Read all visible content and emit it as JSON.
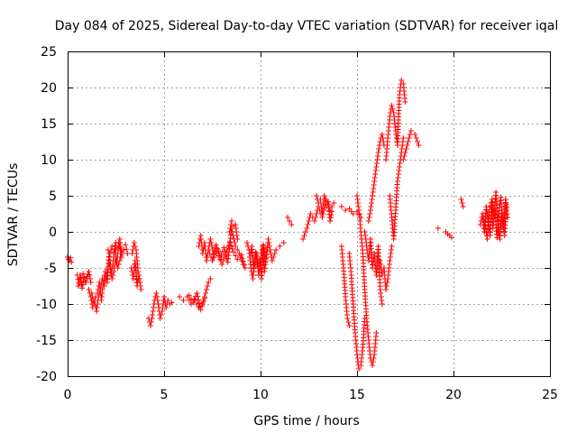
{
  "chart_data": {
    "type": "scatter",
    "title": "Day 084 of 2025, Sidereal Day-to-day VTEC variation (SDTVAR) for receiver iqal",
    "xlabel": "GPS time / hours",
    "ylabel": "SDTVAR / TECUs",
    "xlim": [
      0,
      25
    ],
    "ylim": [
      -20,
      25
    ],
    "xticks": [
      0,
      5,
      10,
      15,
      20,
      25
    ],
    "yticks": [
      -20,
      -15,
      -10,
      -5,
      0,
      5,
      10,
      15,
      20,
      25
    ],
    "xtick_labels": [
      "0",
      "5",
      "10",
      "15",
      "20",
      "25"
    ],
    "ytick_labels": [
      "-20",
      "-15",
      "-10",
      "-5",
      "0",
      "5",
      "10",
      "15",
      "20",
      "25"
    ],
    "grid": true,
    "marker": "+",
    "color": "#ff0000",
    "series": [
      {
        "name": "SDTVAR",
        "segments": [
          {
            "x": [
              0.0,
              0.05,
              0.1,
              0.15,
              0.2
            ],
            "y": [
              -3.5,
              -3.8,
              -4.0,
              -3.6,
              -4.2
            ]
          },
          {
            "x": [
              0.5,
              0.6,
              0.7,
              0.8,
              0.9,
              1.0,
              1.1,
              1.2
            ],
            "y": [
              -6.0,
              -7.2,
              -6.5,
              -5.8,
              -6.8,
              -6.2,
              -5.5,
              -7.0
            ]
          },
          {
            "x": [
              0.55,
              0.65,
              0.75,
              0.85,
              0.95,
              1.05
            ],
            "y": [
              -7.5,
              -6.0,
              -7.8,
              -6.3,
              -7.0,
              -5.9
            ]
          },
          {
            "x": [
              1.1,
              1.2,
              1.3,
              1.4,
              1.5,
              1.6,
              1.7,
              1.8,
              1.9,
              2.0,
              2.1,
              2.2,
              2.3,
              2.4,
              2.5,
              2.6,
              2.7,
              2.8
            ],
            "y": [
              -8.0,
              -9.0,
              -10.5,
              -9.5,
              -11.0,
              -9.0,
              -8.0,
              -6.5,
              -7.5,
              -6.0,
              -5.0,
              -4.0,
              -6.5,
              -5.5,
              -3.5,
              -5.0,
              -4.0,
              -2.5
            ]
          },
          {
            "x": [
              1.25,
              1.35,
              1.45,
              1.55,
              1.65,
              1.75,
              1.85,
              1.95,
              2.05,
              2.15,
              2.25,
              2.35,
              2.45,
              2.55,
              2.65,
              2.75
            ],
            "y": [
              -8.5,
              -10.0,
              -9.0,
              -8.5,
              -7.0,
              -9.5,
              -7.0,
              -5.5,
              -7.0,
              -3.0,
              -6.0,
              -4.5,
              -2.0,
              -4.5,
              -1.5,
              -3.0
            ]
          },
          {
            "x": [
              2.1,
              2.2,
              2.3,
              2.4,
              2.5,
              2.6,
              2.7,
              2.8,
              2.9,
              3.0,
              3.1
            ],
            "y": [
              -2.5,
              -3.0,
              -2.0,
              -2.8,
              -1.5,
              -2.2,
              -1.0,
              -3.5,
              -2.5,
              -1.8,
              -3.0
            ]
          },
          {
            "x": [
              3.3,
              3.4,
              3.5,
              3.6,
              3.7,
              3.8
            ],
            "y": [
              -5.0,
              -6.5,
              -4.0,
              -7.5,
              -6.0,
              -8.0
            ]
          },
          {
            "x": [
              3.35,
              3.45,
              3.55,
              3.65
            ],
            "y": [
              -3.0,
              -1.5,
              -2.5,
              -5.5
            ]
          },
          {
            "x": [
              4.2,
              4.3,
              4.4,
              4.5,
              4.6,
              4.7,
              4.8,
              4.9,
              5.0,
              5.1,
              5.2,
              5.3,
              5.4
            ],
            "y": [
              -12.0,
              -13.0,
              -11.5,
              -9.5,
              -8.5,
              -10.0,
              -12.0,
              -11.0,
              -9.0,
              -10.5,
              -9.5,
              -10.0,
              -9.8
            ]
          },
          {
            "x": [
              5.8,
              6.0,
              6.2,
              6.4,
              6.6,
              6.8,
              7.0,
              7.1,
              7.2,
              7.3,
              7.4
            ],
            "y": [
              -9.0,
              -9.5,
              -9.0,
              -10.0,
              -9.5,
              -10.5,
              -10.0,
              -9.0,
              -8.0,
              -7.0,
              -6.5
            ]
          },
          {
            "x": [
              6.3,
              6.5,
              6.7,
              6.9,
              7.1
            ],
            "y": [
              -8.8,
              -9.8,
              -8.5,
              -10.8,
              -9.2
            ]
          },
          {
            "x": [
              6.8,
              6.9,
              7.0,
              7.1,
              7.2
            ],
            "y": [
              -2.0,
              -0.5,
              -3.0,
              -1.5,
              -4.0
            ]
          },
          {
            "x": [
              7.2,
              7.4,
              7.6,
              7.8,
              8.0,
              8.2,
              8.4,
              8.6,
              8.8,
              9.0,
              9.2
            ],
            "y": [
              -4.0,
              -1.0,
              -3.5,
              -2.5,
              -4.5,
              -3.0,
              -1.5,
              -2.8,
              -3.8,
              -3.2,
              -5.0
            ]
          },
          {
            "x": [
              7.3,
              7.5,
              7.7,
              7.9,
              8.1,
              8.3,
              8.5,
              8.7,
              8.9,
              9.1
            ],
            "y": [
              -2.5,
              -4.0,
              -1.8,
              -3.8,
              -2.2,
              -4.2,
              0.5,
              -2.0,
              -3.0,
              -4.5
            ]
          },
          {
            "x": [
              8.4,
              8.5,
              8.6,
              8.7,
              8.8
            ],
            "y": [
              0.0,
              1.5,
              0.8,
              1.0,
              -1.0
            ]
          },
          {
            "x": [
              9.3,
              9.4,
              9.5,
              9.6,
              9.7,
              9.8,
              9.9,
              10.0,
              10.1,
              10.2,
              10.3,
              10.4,
              10.6,
              10.8,
              11.0,
              11.2
            ],
            "y": [
              -1.5,
              -2.5,
              -5.0,
              -6.5,
              -4.0,
              -3.0,
              -6.0,
              -4.5,
              -2.0,
              -5.5,
              -3.5,
              -1.0,
              -4.0,
              -2.5,
              -2.0,
              -1.5
            ]
          },
          {
            "x": [
              9.45,
              9.55,
              9.65,
              9.75,
              9.85,
              9.95,
              10.05,
              10.15,
              10.25,
              10.35
            ],
            "y": [
              -3.5,
              -2.0,
              -5.5,
              -2.8,
              -4.8,
              -3.8,
              -6.5,
              -1.8,
              -4.2,
              -2.2
            ]
          },
          {
            "x": [
              11.4,
              11.6
            ],
            "y": [
              2.0,
              1.0
            ]
          },
          {
            "x": [
              12.2,
              12.4,
              12.6,
              12.8,
              13.0,
              13.2,
              13.4,
              13.6,
              13.8
            ],
            "y": [
              -1.0,
              0.5,
              2.5,
              1.5,
              3.5,
              2.0,
              4.5,
              3.0,
              4.0
            ]
          },
          {
            "x": [
              12.9,
              13.0,
              13.1,
              13.2,
              13.3,
              13.4,
              13.5,
              13.6,
              13.7
            ],
            "y": [
              5.0,
              4.0,
              4.5,
              2.5,
              5.0,
              3.5,
              4.2,
              1.5,
              2.8
            ]
          },
          {
            "x": [
              14.2,
              14.4,
              14.6,
              14.8,
              15.0,
              15.2
            ],
            "y": [
              3.5,
              3.0,
              3.2,
              2.5,
              2.8,
              2.0
            ]
          },
          {
            "x": [
              14.2,
              14.3,
              14.4,
              14.5,
              14.6
            ],
            "y": [
              -2.0,
              -5.0,
              -9.0,
              -12.0,
              -13.0
            ]
          },
          {
            "x": [
              14.6,
              14.7,
              14.8,
              14.9,
              15.0,
              15.1,
              15.2,
              15.3,
              15.4
            ],
            "y": [
              -3.0,
              -6.0,
              -10.0,
              -14.0,
              -17.0,
              -19.0,
              -18.5,
              -16.0,
              -12.0
            ]
          },
          {
            "x": [
              15.0,
              15.1,
              15.2,
              15.3,
              15.4,
              15.5,
              15.6,
              15.7,
              15.8,
              15.9,
              16.0
            ],
            "y": [
              5.0,
              3.0,
              0.0,
              -3.0,
              -8.0,
              -12.0,
              -15.0,
              -17.5,
              -18.5,
              -17.0,
              -14.0
            ]
          },
          {
            "x": [
              15.4,
              15.5,
              15.6,
              15.7,
              15.8,
              15.9,
              16.0,
              16.1,
              16.2,
              16.3
            ],
            "y": [
              0.0,
              -2.0,
              -4.0,
              -1.0,
              -5.0,
              -3.0,
              -6.0,
              -2.0,
              -8.0,
              -10.0
            ]
          },
          {
            "x": [
              15.6,
              15.7,
              15.8,
              15.9,
              16.0,
              16.1,
              16.2,
              16.3,
              16.4
            ],
            "y": [
              1.5,
              3.0,
              5.0,
              7.0,
              9.0,
              11.0,
              12.5,
              13.5,
              12.0
            ]
          },
          {
            "x": [
              16.2,
              16.3,
              16.4,
              16.5,
              16.6,
              16.7,
              16.8
            ],
            "y": [
              -4.0,
              -6.0,
              -5.0,
              -8.0,
              -6.5,
              -4.0,
              -2.0
            ]
          },
          {
            "x": [
              16.5,
              16.6,
              16.7,
              16.8,
              16.9,
              17.0,
              17.1,
              17.2,
              17.3,
              17.4,
              17.5
            ],
            "y": [
              10.0,
              13.0,
              16.0,
              17.5,
              16.5,
              14.0,
              12.0,
              19.0,
              21.0,
              20.5,
              18.0
            ]
          },
          {
            "x": [
              16.7,
              16.8,
              16.9,
              17.0,
              17.1,
              17.2,
              17.3,
              17.4
            ],
            "y": [
              5.0,
              2.0,
              -1.0,
              3.0,
              7.0,
              9.0,
              11.0,
              13.0
            ]
          },
          {
            "x": [
              17.4,
              17.6,
              17.8,
              18.0,
              18.2
            ],
            "y": [
              10.0,
              12.0,
              14.0,
              13.5,
              12.0
            ]
          },
          {
            "x": [
              19.2
            ],
            "y": [
              0.5
            ]
          },
          {
            "x": [
              19.6,
              19.7,
              19.8,
              19.9
            ],
            "y": [
              0.0,
              -0.3,
              -0.5,
              -0.8
            ]
          },
          {
            "x": [
              20.4,
              20.5
            ],
            "y": [
              4.5,
              3.5
            ]
          },
          {
            "x": [
              21.4,
              21.5,
              21.6,
              21.7,
              21.8,
              21.9,
              22.0,
              22.1,
              22.2,
              22.3,
              22.4,
              22.5,
              22.6,
              22.7,
              22.8
            ],
            "y": [
              1.0,
              2.5,
              0.0,
              3.5,
              1.5,
              -0.5,
              4.5,
              2.0,
              5.5,
              1.0,
              -1.0,
              3.0,
              0.5,
              4.5,
              2.0
            ]
          },
          {
            "x": [
              21.55,
              21.65,
              21.75,
              21.85,
              21.95,
              22.05,
              22.15,
              22.25,
              22.35,
              22.45,
              22.55,
              22.65,
              22.75
            ],
            "y": [
              2.0,
              0.8,
              -1.0,
              2.8,
              4.0,
              0.5,
              3.2,
              -0.8,
              2.5,
              4.8,
              1.2,
              -0.5,
              3.8
            ]
          }
        ]
      }
    ]
  }
}
